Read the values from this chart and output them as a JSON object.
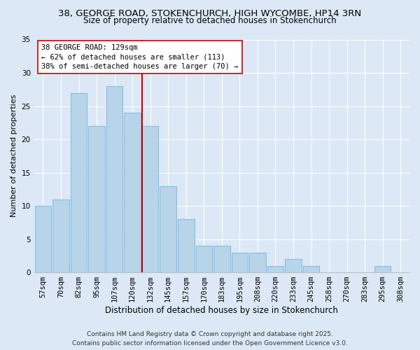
{
  "title": "38, GEORGE ROAD, STOKENCHURCH, HIGH WYCOMBE, HP14 3RN",
  "subtitle": "Size of property relative to detached houses in Stokenchurch",
  "xlabel": "Distribution of detached houses by size in Stokenchurch",
  "ylabel": "Number of detached properties",
  "categories": [
    "57sqm",
    "70sqm",
    "82sqm",
    "95sqm",
    "107sqm",
    "120sqm",
    "132sqm",
    "145sqm",
    "157sqm",
    "170sqm",
    "183sqm",
    "195sqm",
    "208sqm",
    "220sqm",
    "233sqm",
    "245sqm",
    "258sqm",
    "270sqm",
    "283sqm",
    "295sqm",
    "308sqm"
  ],
  "values": [
    10,
    11,
    27,
    22,
    28,
    24,
    22,
    13,
    8,
    4,
    4,
    3,
    3,
    1,
    2,
    1,
    0,
    0,
    0,
    1,
    0
  ],
  "bar_color": "#b8d4e8",
  "bar_edge_color": "#7abbe8",
  "vline_color": "#cc0000",
  "annotation_line1": "38 GEORGE ROAD: 129sqm",
  "annotation_line2": "← 62% of detached houses are smaller (113)",
  "annotation_line3": "38% of semi-detached houses are larger (70) →",
  "annotation_box_color": "#ffffff",
  "annotation_box_edge_color": "#cc0000",
  "ylim": [
    0,
    35
  ],
  "yticks": [
    0,
    5,
    10,
    15,
    20,
    25,
    30,
    35
  ],
  "background_color": "#dce8f5",
  "grid_color": "#ffffff",
  "footer_line1": "Contains HM Land Registry data © Crown copyright and database right 2025.",
  "footer_line2": "Contains public sector information licensed under the Open Government Licence v3.0.",
  "title_fontsize": 9.5,
  "subtitle_fontsize": 8.5,
  "xlabel_fontsize": 8.5,
  "ylabel_fontsize": 8,
  "tick_fontsize": 7.5,
  "footer_fontsize": 6.5,
  "annotation_fontsize": 7.5
}
